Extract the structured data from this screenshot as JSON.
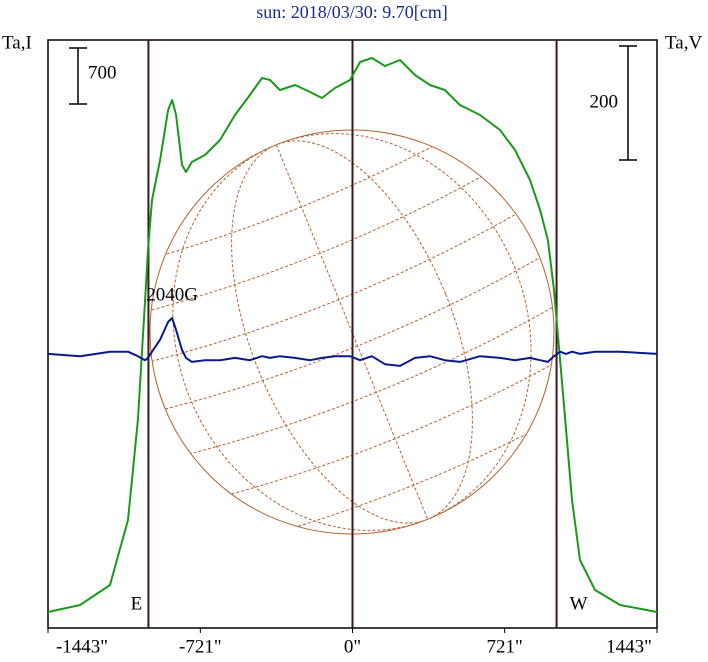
{
  "chart_data": {
    "type": "line",
    "title": "sun: 2018/03/30: 9.70[cm]",
    "ylabel": "Ta,I",
    "y2label": "Ta,V",
    "x": [
      -1443,
      -1291,
      -1149,
      -1064,
      -1017,
      -983,
      -969,
      -950,
      -912,
      -874,
      -855,
      -836,
      -808,
      -789,
      -761,
      -699,
      -628,
      -557,
      -486,
      -429,
      -391,
      -344,
      -272,
      -201,
      -145,
      -83,
      -12,
      36,
      92,
      154,
      225,
      296,
      367,
      438,
      509,
      604,
      699,
      770,
      841,
      889,
      926,
      955,
      984,
      1012,
      1040,
      1078,
      1149,
      1268,
      1443
    ],
    "series": [
      {
        "name": "Ta,I",
        "color": "#1a9a1a",
        "axis": "y",
        "values": [
          200,
          288,
          538,
          1350,
          2600,
          4100,
          4725,
          5350,
          5850,
          6475,
          6600,
          6413,
          5788,
          5700,
          5825,
          5913,
          6100,
          6413,
          6663,
          6875,
          6850,
          6725,
          6788,
          6700,
          6625,
          6750,
          6850,
          7075,
          7125,
          7025,
          7100,
          6913,
          6788,
          6725,
          6538,
          6413,
          6225,
          5975,
          5600,
          5225,
          4850,
          4225,
          3350,
          2475,
          1600,
          850,
          475,
          288,
          200
        ]
      },
      {
        "name": "Ta,V",
        "color": "#0a1a8c",
        "axis": "y2",
        "values": [
          0,
          -4,
          4,
          4,
          -4,
          -11,
          -7,
          4,
          25,
          56,
          63,
          42,
          7,
          -7,
          -14,
          -11,
          -11,
          -7,
          -11,
          -4,
          -7,
          -4,
          -7,
          -11,
          -7,
          -4,
          -4,
          -11,
          -4,
          -18,
          -21,
          -7,
          -4,
          -11,
          -14,
          -4,
          -7,
          -11,
          -7,
          -11,
          -14,
          -4,
          4,
          0,
          4,
          0,
          4,
          4,
          0
        ]
      }
    ],
    "xlim": [
      -1443,
      1443
    ],
    "xticks": [
      {
        "value": -1443,
        "label": "-1443\""
      },
      {
        "value": -721,
        "label": "-721\""
      },
      {
        "value": 0,
        "label": "0\""
      },
      {
        "value": 721,
        "label": "721\""
      },
      {
        "value": 1443,
        "label": "1443\""
      }
    ],
    "ylim": [
      0,
      7350
    ],
    "y2lim": [
      -481,
      551
    ],
    "scale_bars": [
      {
        "value": 700,
        "axis": "y"
      },
      {
        "value": 200,
        "axis": "y2"
      }
    ],
    "vlines": [
      -967,
      0,
      967
    ],
    "limb_labels": [
      {
        "value": -967,
        "label": "E"
      },
      {
        "value": 967,
        "label": "W"
      }
    ],
    "annotations": [
      {
        "x": -855,
        "text": "2040G"
      }
    ]
  }
}
